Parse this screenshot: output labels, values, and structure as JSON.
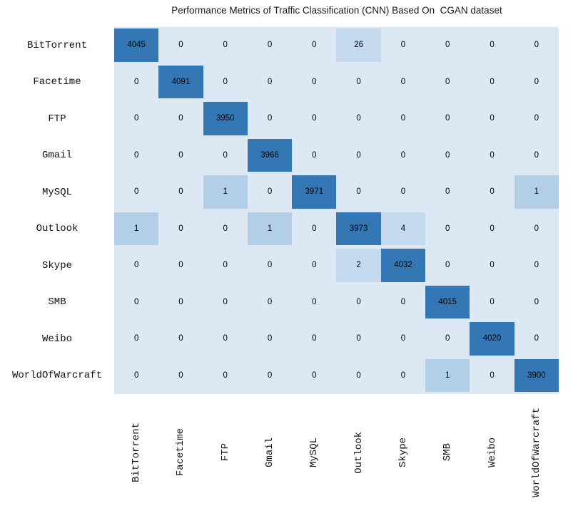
{
  "title": "Performance Metrics of Traffic Classification (CNN) Based On  CGAN dataset",
  "chart_data": {
    "type": "heatmap",
    "subtype": "confusion-matrix",
    "title": "Performance Metrics of Traffic Classification (CNN) Based On  CGAN dataset",
    "legend": "none",
    "row_labels": [
      "BitTorrent",
      "Facetime",
      "FTP",
      "Gmail",
      "MySQL",
      "Outlook",
      "Skype",
      "SMB",
      "Weibo",
      "WorldOfWarcraft"
    ],
    "col_labels": [
      "BitTorrent",
      "Facetime",
      "FTP",
      "Gmail",
      "MySQL",
      "Outlook",
      "Skype",
      "SMB",
      "Weibo",
      "WorldOfWarcraft"
    ],
    "matrix": [
      [
        4045,
        0,
        0,
        0,
        0,
        26,
        0,
        0,
        0,
        0
      ],
      [
        0,
        4091,
        0,
        0,
        0,
        0,
        0,
        0,
        0,
        0
      ],
      [
        0,
        0,
        3950,
        0,
        0,
        0,
        0,
        0,
        0,
        0
      ],
      [
        0,
        0,
        0,
        3966,
        0,
        0,
        0,
        0,
        0,
        0
      ],
      [
        0,
        0,
        1,
        0,
        3971,
        0,
        0,
        0,
        0,
        1
      ],
      [
        1,
        0,
        0,
        1,
        0,
        3973,
        4,
        0,
        0,
        0
      ],
      [
        0,
        0,
        0,
        0,
        0,
        2,
        4032,
        0,
        0,
        0
      ],
      [
        0,
        0,
        0,
        0,
        0,
        0,
        0,
        4015,
        0,
        0
      ],
      [
        0,
        0,
        0,
        0,
        0,
        0,
        0,
        0,
        4020,
        0
      ],
      [
        0,
        0,
        0,
        0,
        0,
        0,
        0,
        1,
        0,
        3900
      ]
    ],
    "layout": {
      "x_tick_rotation": 90,
      "values_shown_in_cells": true,
      "grid": "off"
    },
    "colors": {
      "background": "#ffffff",
      "cell_zero": "#dce9f4",
      "cell_one": "#b3cfe8",
      "cell_small": "#c3d9ed",
      "cell_diagonal": "#3377b5",
      "text": "#000000"
    }
  }
}
